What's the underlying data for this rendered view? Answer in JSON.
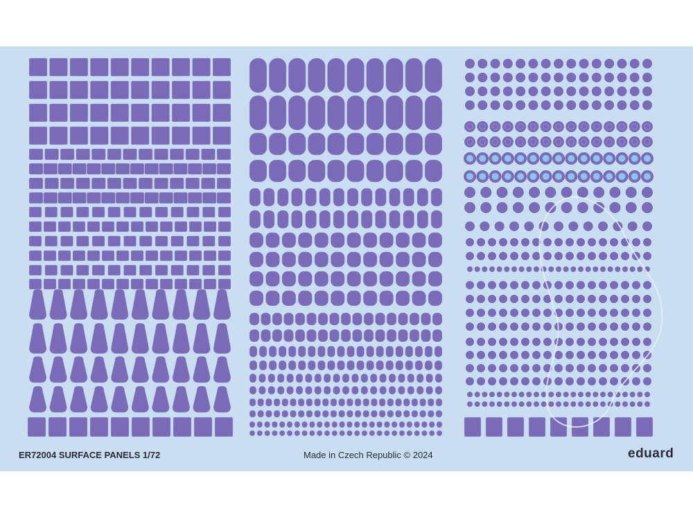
{
  "sheet": {
    "product_title": "ER72004 SURFACE PANELS 1/72",
    "origin": "Made in Czech Republic  ©  2024",
    "brand": "eduard",
    "colors": {
      "background": "#c9dff1",
      "panel_fill": "#7a6bb8",
      "panel_stitch": "#b9b0e2",
      "caption_text": "#2a2a3a"
    },
    "sections": [
      {
        "name": "left",
        "content": "rectangular panels, teardrop panels, square tabs"
      },
      {
        "name": "middle",
        "content": "rounded oval panels in decreasing sizes"
      },
      {
        "name": "right",
        "content": "circular panels, perforated discs, ring panels, square tabs"
      }
    ]
  }
}
